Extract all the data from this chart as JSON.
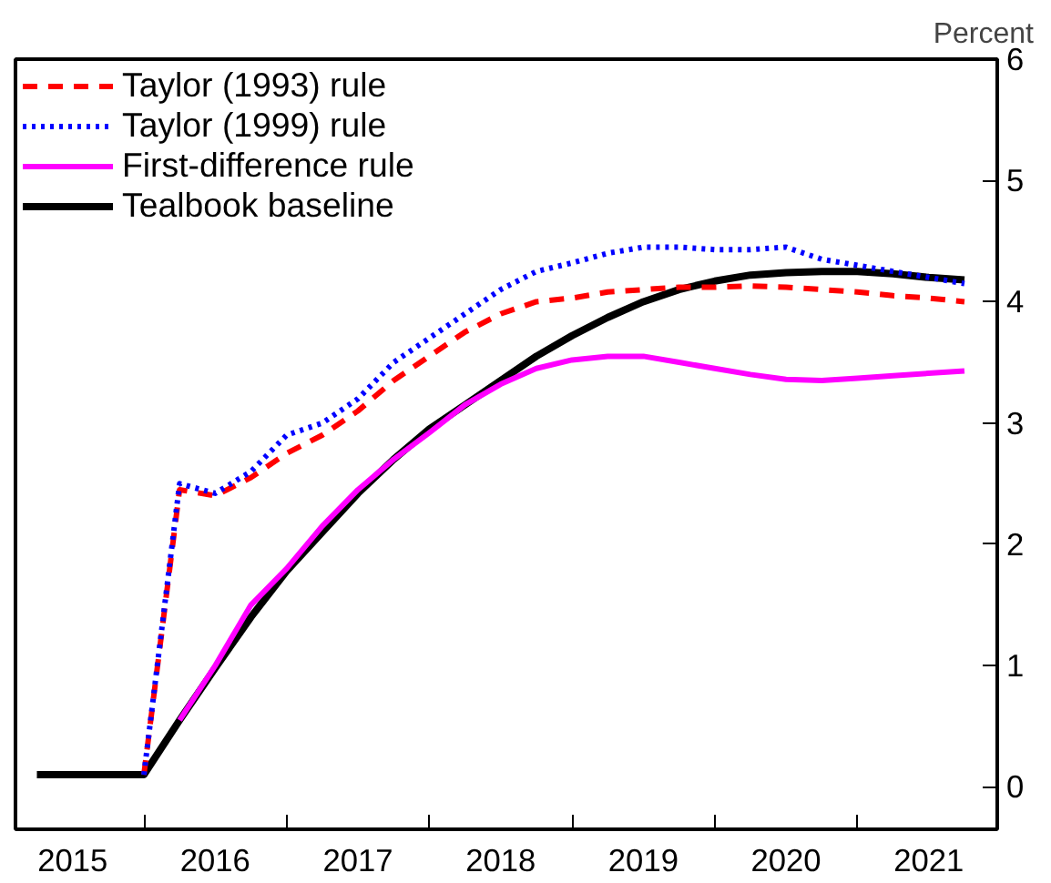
{
  "chart_data": {
    "type": "line",
    "ylabel": "Percent",
    "x": [
      2015.25,
      2015.5,
      2015.75,
      2016.0,
      2016.25,
      2016.5,
      2016.75,
      2017.0,
      2017.25,
      2017.5,
      2017.75,
      2018.0,
      2018.25,
      2018.5,
      2018.75,
      2019.0,
      2019.25,
      2019.5,
      2019.75,
      2020.0,
      2020.25,
      2020.5,
      2020.75,
      2021.0,
      2021.25,
      2021.5,
      2021.75
    ],
    "series": [
      {
        "name": "Taylor (1993) rule",
        "color": "#ff0000",
        "line_style": "dashed",
        "values": [
          null,
          null,
          null,
          0.1,
          2.45,
          2.4,
          2.55,
          2.75,
          2.9,
          3.1,
          3.35,
          3.55,
          3.75,
          3.9,
          4.0,
          4.03,
          4.08,
          4.1,
          4.12,
          4.12,
          4.13,
          4.12,
          4.1,
          4.08,
          4.05,
          4.03,
          4.0
        ]
      },
      {
        "name": "Taylor (1999) rule",
        "color": "#0000ff",
        "line_style": "dotted",
        "values": [
          null,
          null,
          null,
          0.1,
          2.5,
          2.42,
          2.6,
          2.9,
          3.0,
          3.2,
          3.5,
          3.7,
          3.9,
          4.1,
          4.25,
          4.32,
          4.4,
          4.45,
          4.45,
          4.43,
          4.43,
          4.45,
          4.35,
          4.3,
          4.25,
          4.2,
          4.15
        ]
      },
      {
        "name": "First-difference rule",
        "color": "#ff00ff",
        "line_style": "solid",
        "values": [
          null,
          null,
          null,
          null,
          0.55,
          1.0,
          1.5,
          1.8,
          2.15,
          2.45,
          2.7,
          2.92,
          3.15,
          3.32,
          3.45,
          3.52,
          3.55,
          3.55,
          3.5,
          3.45,
          3.4,
          3.36,
          3.35,
          3.37,
          3.39,
          3.41,
          3.43
        ]
      },
      {
        "name": "Tealbook baseline",
        "color": "#000000",
        "line_style": "solid",
        "values": [
          0.1,
          0.1,
          0.1,
          0.1,
          0.55,
          0.98,
          1.4,
          1.78,
          2.1,
          2.42,
          2.7,
          2.95,
          3.15,
          3.35,
          3.55,
          3.72,
          3.87,
          4.0,
          4.1,
          4.17,
          4.22,
          4.24,
          4.25,
          4.25,
          4.23,
          4.2,
          4.18
        ]
      }
    ],
    "xlim": [
      2015.1,
      2021.98
    ],
    "ylim": [
      -0.35,
      6
    ],
    "xticks": [
      {
        "value": 2015.5,
        "label": "2015"
      },
      {
        "value": 2016.5,
        "label": "2016"
      },
      {
        "value": 2017.5,
        "label": "2017"
      },
      {
        "value": 2018.5,
        "label": "2018"
      },
      {
        "value": 2019.5,
        "label": "2019"
      },
      {
        "value": 2020.5,
        "label": "2020"
      },
      {
        "value": 2021.5,
        "label": "2021"
      },
      {
        "value": 2016,
        "label": null
      },
      {
        "value": 2017,
        "label": null
      },
      {
        "value": 2018,
        "label": null
      },
      {
        "value": 2019,
        "label": null
      },
      {
        "value": 2020,
        "label": null
      },
      {
        "value": 2021,
        "label": null
      }
    ],
    "yticks": [
      0,
      1,
      2,
      3,
      4,
      5,
      6
    ],
    "legend": "top left",
    "grid": false
  }
}
